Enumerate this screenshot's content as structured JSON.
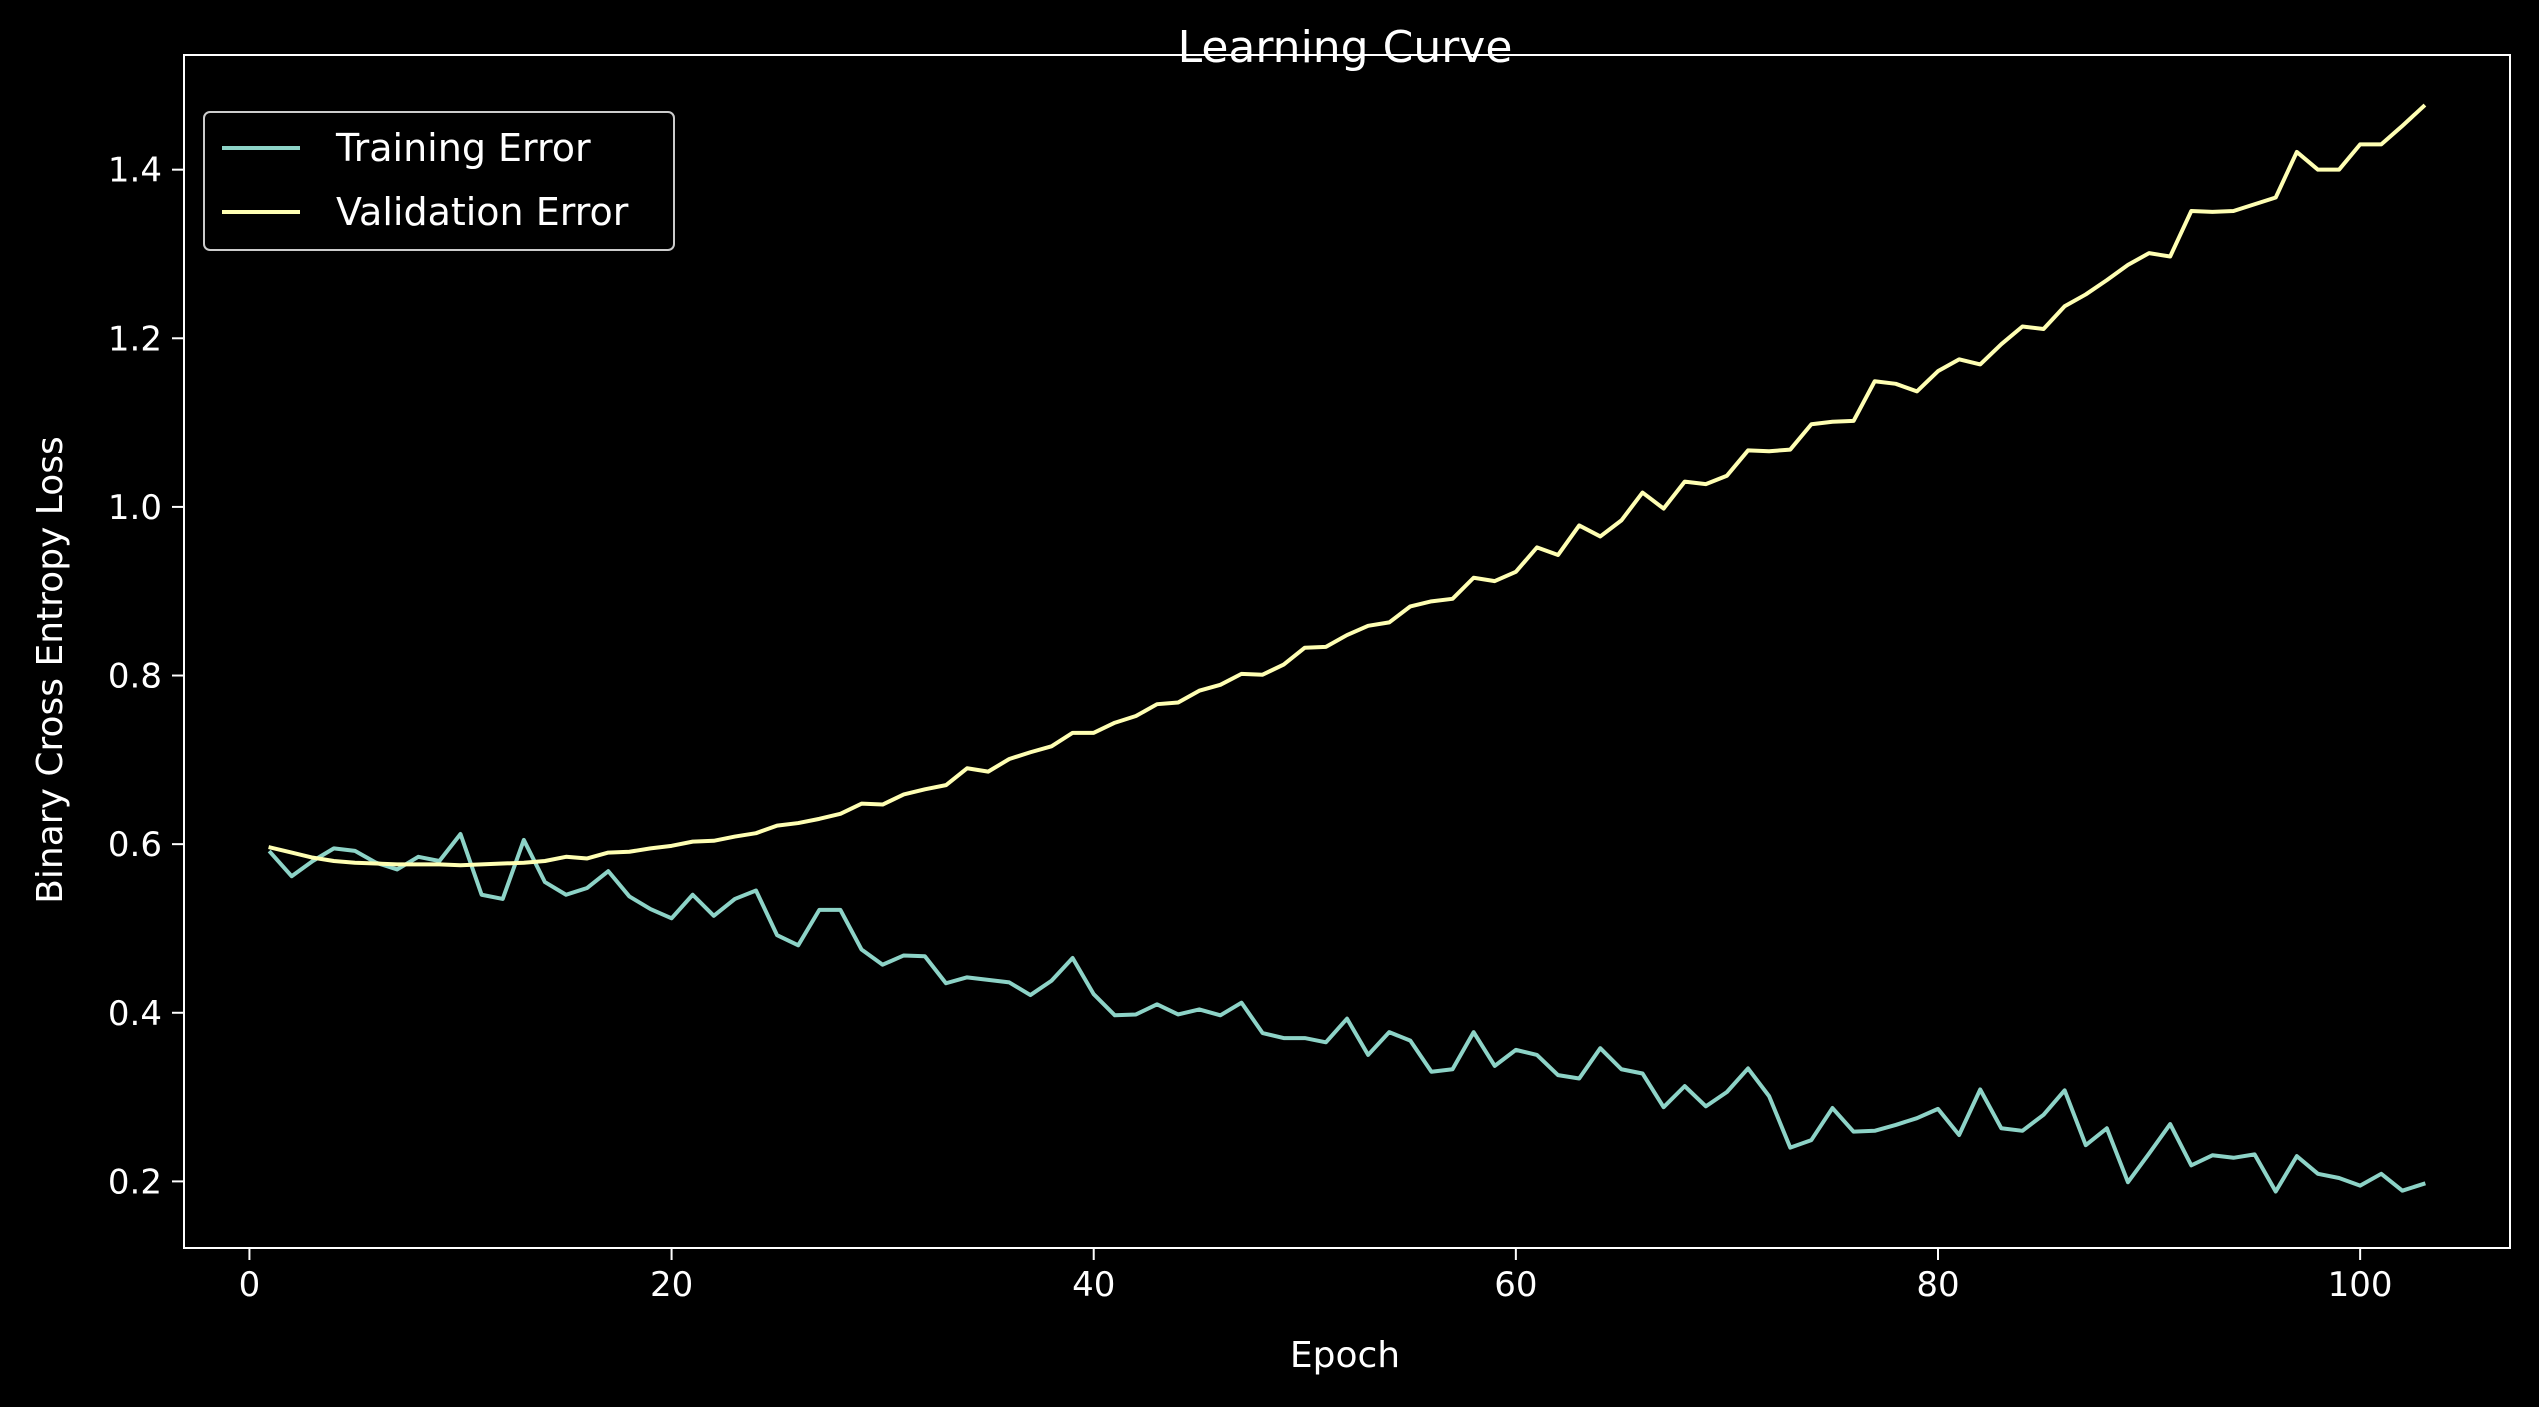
{
  "chart_data": {
    "type": "line",
    "title": "Learning Curve",
    "xlabel": "Epoch",
    "ylabel": "Binary Cross Entropy Loss",
    "xlim": [
      -3.1,
      107.1
    ],
    "ylim": [
      0.121,
      1.536
    ],
    "xticks": [
      0,
      20,
      40,
      60,
      80,
      100
    ],
    "xtick_labels": [
      "0",
      "20",
      "40",
      "60",
      "80",
      "100"
    ],
    "yticks": [
      0.2,
      0.4,
      0.6,
      0.8,
      1.0,
      1.2,
      1.4
    ],
    "ytick_labels": [
      "0.2",
      "0.4",
      "0.6",
      "0.8",
      "1.0",
      "1.2",
      "1.4"
    ],
    "grid": false,
    "legend_position": "upper-left",
    "background_color": "#000000",
    "text_color": "#ffffff",
    "x": [
      1,
      2,
      3,
      4,
      5,
      6,
      7,
      8,
      9,
      10,
      11,
      12,
      13,
      14,
      15,
      16,
      17,
      18,
      19,
      20,
      21,
      22,
      23,
      24,
      25,
      26,
      27,
      28,
      29,
      30,
      31,
      32,
      33,
      34,
      35,
      36,
      37,
      38,
      39,
      40,
      41,
      42,
      43,
      44,
      45,
      46,
      47,
      48,
      49,
      50,
      51,
      52,
      53,
      54,
      55,
      56,
      57,
      58,
      59,
      60,
      61,
      62,
      63,
      64,
      65,
      66,
      67,
      68,
      69,
      70,
      71,
      72,
      73,
      74,
      75,
      76,
      77,
      78,
      79,
      80,
      81,
      82,
      83,
      84,
      85,
      86,
      87,
      88,
      89,
      90,
      91,
      92,
      93,
      94,
      95,
      96,
      97,
      98,
      99,
      100,
      101,
      102,
      103
    ],
    "series": [
      {
        "name": "Training Error",
        "color": "#8dd3c7",
        "values": [
          0.59,
          0.562,
          0.58,
          0.595,
          0.592,
          0.578,
          0.57,
          0.585,
          0.58,
          0.612,
          0.54,
          0.535,
          0.605,
          0.555,
          0.54,
          0.548,
          0.568,
          0.538,
          0.523,
          0.512,
          0.54,
          0.515,
          0.535,
          0.545,
          0.492,
          0.48,
          0.522,
          0.522,
          0.475,
          0.457,
          0.468,
          0.467,
          0.435,
          0.442,
          0.439,
          0.436,
          0.421,
          0.438,
          0.465,
          0.422,
          0.397,
          0.398,
          0.41,
          0.398,
          0.404,
          0.397,
          0.412,
          0.376,
          0.37,
          0.37,
          0.365,
          0.393,
          0.35,
          0.377,
          0.367,
          0.33,
          0.333,
          0.377,
          0.337,
          0.356,
          0.35,
          0.326,
          0.322,
          0.358,
          0.333,
          0.328,
          0.288,
          0.313,
          0.289,
          0.306,
          0.334,
          0.301,
          0.24,
          0.249,
          0.287,
          0.259,
          0.26,
          0.267,
          0.275,
          0.286,
          0.255,
          0.309,
          0.263,
          0.26,
          0.279,
          0.308,
          0.243,
          0.263,
          0.199,
          0.233,
          0.268,
          0.219,
          0.231,
          0.228,
          0.232,
          0.188,
          0.23,
          0.209,
          0.204,
          0.195,
          0.209,
          0.189,
          0.197
        ]
      },
      {
        "name": "Validation Error",
        "color": "#ffffb3",
        "values": [
          0.596,
          0.59,
          0.584,
          0.58,
          0.578,
          0.577,
          0.576,
          0.576,
          0.576,
          0.575,
          0.576,
          0.577,
          0.578,
          0.58,
          0.585,
          0.583,
          0.59,
          0.591,
          0.595,
          0.598,
          0.603,
          0.604,
          0.609,
          0.613,
          0.622,
          0.625,
          0.63,
          0.636,
          0.648,
          0.647,
          0.659,
          0.665,
          0.67,
          0.69,
          0.686,
          0.701,
          0.709,
          0.716,
          0.732,
          0.732,
          0.744,
          0.752,
          0.766,
          0.768,
          0.782,
          0.789,
          0.802,
          0.801,
          0.813,
          0.833,
          0.834,
          0.848,
          0.859,
          0.863,
          0.882,
          0.888,
          0.891,
          0.916,
          0.912,
          0.923,
          0.952,
          0.943,
          0.978,
          0.965,
          0.984,
          1.017,
          0.998,
          1.03,
          1.027,
          1.037,
          1.067,
          1.066,
          1.068,
          1.098,
          1.101,
          1.102,
          1.149,
          1.146,
          1.137,
          1.161,
          1.175,
          1.169,
          1.193,
          1.214,
          1.211,
          1.238,
          1.252,
          1.269,
          1.287,
          1.301,
          1.297,
          1.351,
          1.35,
          1.351,
          1.359,
          1.367,
          1.421,
          1.4,
          1.4,
          1.43,
          1.43,
          1.452,
          1.475
        ]
      }
    ]
  }
}
